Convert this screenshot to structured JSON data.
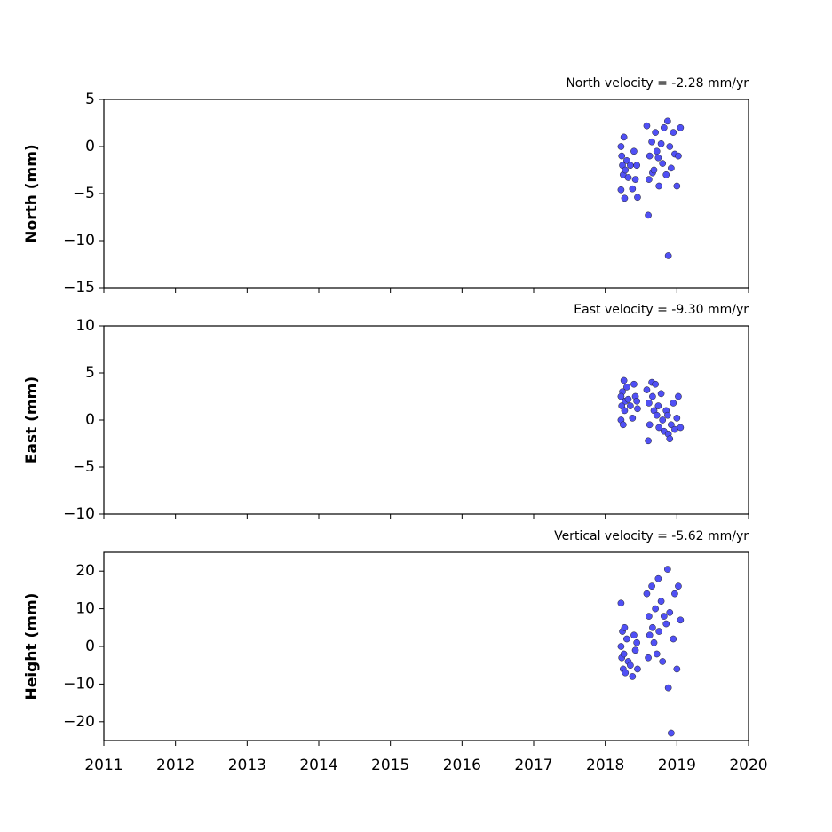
{
  "chart_data": [
    {
      "type": "scatter",
      "title": "North velocity = -2.28 mm/yr",
      "y_label": "North (mm)",
      "color": "#5050f5",
      "x": [
        2018.22,
        2018.23,
        2018.24,
        2018.25,
        2018.22,
        2018.26,
        2018.27,
        2018.28,
        2018.3,
        2018.32,
        2018.35,
        2018.38,
        2018.4,
        2018.42,
        2018.45,
        2018.44,
        2018.58,
        2018.6,
        2018.61,
        2018.62,
        2018.65,
        2018.66,
        2018.68,
        2018.7,
        2018.72,
        2018.74,
        2018.75,
        2018.78,
        2018.8,
        2018.82,
        2018.85,
        2018.88,
        2018.87,
        2018.9,
        2018.92,
        2018.95,
        2018.97,
        2019.0,
        2019.02,
        2019.05
      ],
      "values": [
        0.0,
        -1.0,
        -2.0,
        -3.0,
        -4.6,
        1.0,
        -5.5,
        -2.5,
        -1.5,
        -3.3,
        -2.0,
        -4.5,
        -0.5,
        -3.5,
        -5.4,
        -2.0,
        2.2,
        -7.3,
        -3.5,
        -1.0,
        0.5,
        -2.8,
        -2.5,
        1.5,
        -0.5,
        -1.2,
        -4.2,
        0.3,
        -1.8,
        2.0,
        -3.0,
        -11.6,
        2.7,
        0.0,
        -2.3,
        1.5,
        -0.8,
        -4.2,
        -1.0,
        2.0
      ],
      "xlim": [
        2011,
        2020
      ],
      "xticks": [
        2011,
        2012,
        2013,
        2014,
        2015,
        2016,
        2017,
        2018,
        2019,
        2020
      ],
      "ylim": [
        -15,
        5
      ],
      "yticks": [
        {
          "value": -15,
          "label": "−15"
        },
        {
          "value": -10,
          "label": "−10"
        },
        {
          "value": -5,
          "label": "−5"
        },
        0,
        5
      ]
    },
    {
      "type": "scatter",
      "title": "East velocity = -9.30 mm/yr",
      "y_label": "East (mm)",
      "color": "#5050f5",
      "x": [
        2018.22,
        2018.23,
        2018.24,
        2018.25,
        2018.22,
        2018.26,
        2018.27,
        2018.28,
        2018.3,
        2018.32,
        2018.35,
        2018.38,
        2018.4,
        2018.42,
        2018.45,
        2018.44,
        2018.58,
        2018.6,
        2018.61,
        2018.62,
        2018.65,
        2018.66,
        2018.68,
        2018.7,
        2018.72,
        2018.74,
        2018.75,
        2018.78,
        2018.8,
        2018.82,
        2018.85,
        2018.88,
        2018.87,
        2018.9,
        2018.92,
        2018.95,
        2018.97,
        2019.0,
        2019.02,
        2019.05
      ],
      "values": [
        0.0,
        1.5,
        3.0,
        -0.5,
        2.5,
        4.2,
        1.0,
        2.0,
        3.5,
        2.2,
        1.5,
        0.2,
        3.8,
        2.5,
        1.2,
        2.0,
        3.2,
        -2.2,
        1.8,
        -0.5,
        4.0,
        2.5,
        1.0,
        3.8,
        0.5,
        1.5,
        -0.8,
        2.8,
        0.0,
        -1.2,
        1.0,
        -1.5,
        0.5,
        -2.0,
        -0.5,
        1.8,
        -1.0,
        0.2,
        2.5,
        -0.8
      ],
      "xlim": [
        2011,
        2020
      ],
      "xticks": [
        2011,
        2012,
        2013,
        2014,
        2015,
        2016,
        2017,
        2018,
        2019,
        2020
      ],
      "ylim": [
        -10,
        10
      ],
      "yticks": [
        {
          "value": -10,
          "label": "−10"
        },
        {
          "value": -5,
          "label": "−5"
        },
        0,
        5,
        10
      ]
    },
    {
      "type": "scatter",
      "title": "Vertical velocity = -5.62 mm/yr",
      "y_label": "Height (mm)",
      "color": "#5050f5",
      "x": [
        2018.22,
        2018.23,
        2018.24,
        2018.25,
        2018.22,
        2018.26,
        2018.27,
        2018.28,
        2018.3,
        2018.32,
        2018.35,
        2018.38,
        2018.4,
        2018.42,
        2018.45,
        2018.44,
        2018.58,
        2018.6,
        2018.61,
        2018.62,
        2018.65,
        2018.66,
        2018.68,
        2018.7,
        2018.72,
        2018.74,
        2018.75,
        2018.78,
        2018.8,
        2018.82,
        2018.85,
        2018.88,
        2018.87,
        2018.9,
        2018.92,
        2018.95,
        2018.97,
        2019.0,
        2019.02,
        2019.05
      ],
      "values": [
        0,
        -3,
        4,
        -6,
        11.5,
        -2,
        5,
        -7,
        2,
        -4,
        -5,
        -8,
        3,
        -1,
        -6,
        1,
        14,
        -3,
        8,
        3,
        16,
        5,
        1,
        10,
        -2,
        18,
        4,
        12,
        -4,
        8,
        6,
        -11,
        20.5,
        9,
        -23,
        2,
        14,
        -6,
        16,
        7
      ],
      "xlim": [
        2011,
        2020
      ],
      "xticks": [
        2011,
        2012,
        2013,
        2014,
        2015,
        2016,
        2017,
        2018,
        2019,
        2020
      ],
      "ylim": [
        -25,
        25
      ],
      "yticks": [
        {
          "value": -20,
          "label": "−20"
        },
        {
          "value": -10,
          "label": "−10"
        },
        0,
        10,
        20
      ]
    }
  ]
}
